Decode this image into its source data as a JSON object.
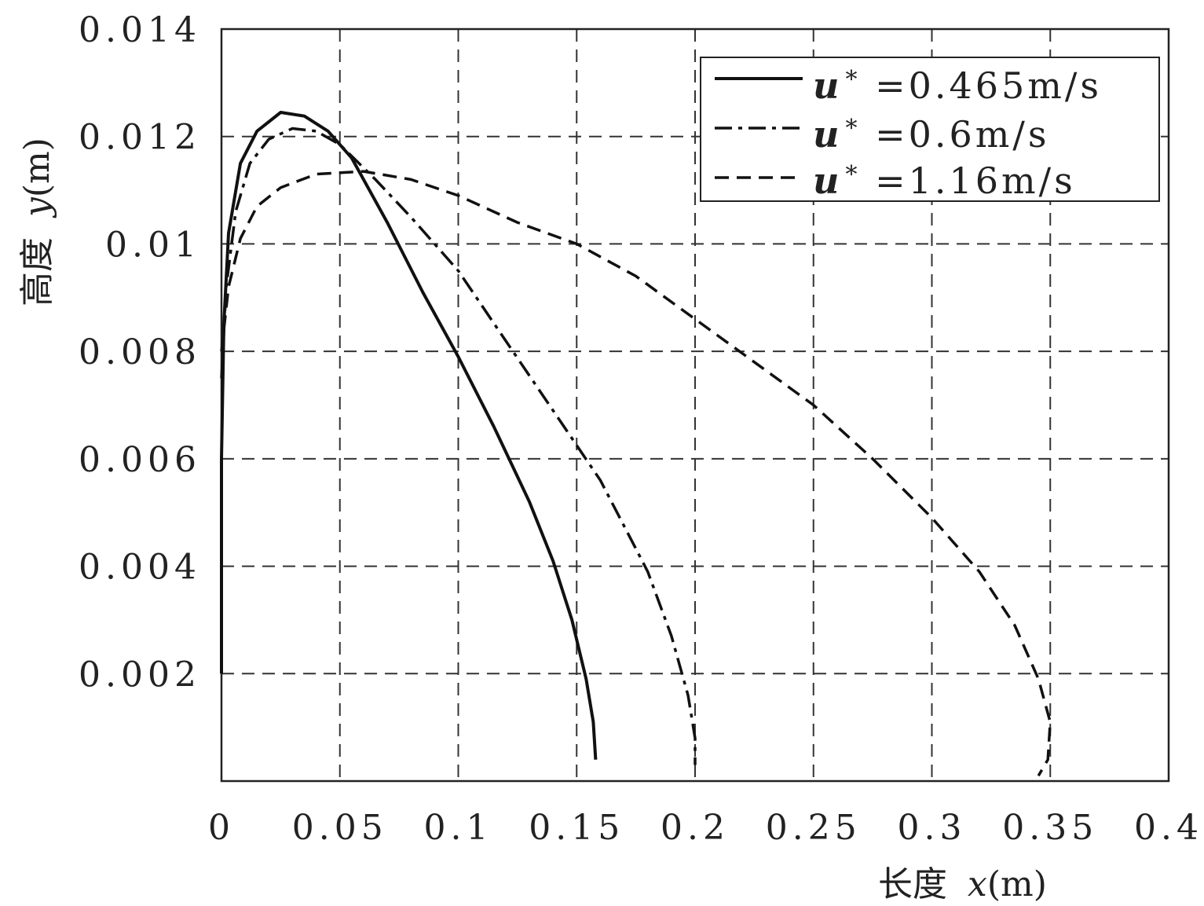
{
  "chart_data": {
    "type": "line",
    "xlabel_prefix": "长度",
    "xlabel_var": "x",
    "xlabel_unit": "(m)",
    "ylabel_prefix": "高度",
    "ylabel_var": "y",
    "ylabel_unit": "(m)",
    "xlim": [
      0,
      0.4
    ],
    "ylim": [
      0,
      0.014
    ],
    "x_ticks": [
      0,
      0.05,
      0.1,
      0.15,
      0.2,
      0.25,
      0.3,
      0.35,
      0.4
    ],
    "x_tick_labels": [
      "0",
      "0.05",
      "0.1",
      "0.15",
      "0.2",
      "0.25",
      "0.3",
      "0.35",
      "0.4"
    ],
    "y_ticks": [
      0.002,
      0.004,
      0.006,
      0.008,
      0.01,
      0.012,
      0.014
    ],
    "y_tick_labels": [
      "0.002",
      "0.004",
      "0.006",
      "0.008",
      "0.01",
      "0.012",
      "0.014"
    ],
    "grid": true,
    "legend_position": "top-right",
    "series": [
      {
        "name_var": "u",
        "name_sup": "*",
        "name_rest": " =0.465m/s",
        "style": "solid",
        "points": [
          [
            0.0,
            0.002
          ],
          [
            0.0,
            0.006
          ],
          [
            0.001,
            0.0085
          ],
          [
            0.003,
            0.0102
          ],
          [
            0.008,
            0.0115
          ],
          [
            0.015,
            0.0121
          ],
          [
            0.025,
            0.01245
          ],
          [
            0.035,
            0.01238
          ],
          [
            0.045,
            0.0121
          ],
          [
            0.055,
            0.0116
          ],
          [
            0.07,
            0.0104
          ],
          [
            0.085,
            0.0091
          ],
          [
            0.1,
            0.0079
          ],
          [
            0.115,
            0.0066
          ],
          [
            0.13,
            0.0052
          ],
          [
            0.14,
            0.0041
          ],
          [
            0.148,
            0.003
          ],
          [
            0.154,
            0.0019
          ],
          [
            0.157,
            0.0011
          ],
          [
            0.158,
            0.0004
          ]
        ]
      },
      {
        "name_var": "u",
        "name_sup": "*",
        "name_rest": " =0.6m/s",
        "style": "dashdot",
        "points": [
          [
            0.0,
            0.0075
          ],
          [
            0.002,
            0.0092
          ],
          [
            0.006,
            0.0106
          ],
          [
            0.012,
            0.0115
          ],
          [
            0.02,
            0.01195
          ],
          [
            0.03,
            0.01215
          ],
          [
            0.04,
            0.0121
          ],
          [
            0.05,
            0.01185
          ],
          [
            0.065,
            0.0112
          ],
          [
            0.08,
            0.0105
          ],
          [
            0.1,
            0.0095
          ],
          [
            0.12,
            0.0082
          ],
          [
            0.14,
            0.0069
          ],
          [
            0.16,
            0.0056
          ],
          [
            0.18,
            0.0039
          ],
          [
            0.19,
            0.0027
          ],
          [
            0.197,
            0.0016
          ],
          [
            0.2,
            0.0008
          ],
          [
            0.2,
            0.0003
          ]
        ]
      },
      {
        "name_var": "u",
        "name_sup": "*",
        "name_rest": " =1.16m/s",
        "style": "dashed",
        "points": [
          [
            0.0,
            0.008
          ],
          [
            0.003,
            0.0092
          ],
          [
            0.008,
            0.0101
          ],
          [
            0.015,
            0.0107
          ],
          [
            0.025,
            0.01105
          ],
          [
            0.04,
            0.0113
          ],
          [
            0.06,
            0.01135
          ],
          [
            0.08,
            0.0112
          ],
          [
            0.1,
            0.0109
          ],
          [
            0.125,
            0.0104
          ],
          [
            0.15,
            0.01
          ],
          [
            0.175,
            0.0094
          ],
          [
            0.2,
            0.0086
          ],
          [
            0.225,
            0.0078
          ],
          [
            0.25,
            0.007
          ],
          [
            0.275,
            0.006
          ],
          [
            0.3,
            0.0049
          ],
          [
            0.32,
            0.0039
          ],
          [
            0.335,
            0.0029
          ],
          [
            0.345,
            0.0019
          ],
          [
            0.35,
            0.0011
          ],
          [
            0.349,
            0.0004
          ],
          [
            0.345,
            0.0001
          ]
        ]
      }
    ]
  }
}
